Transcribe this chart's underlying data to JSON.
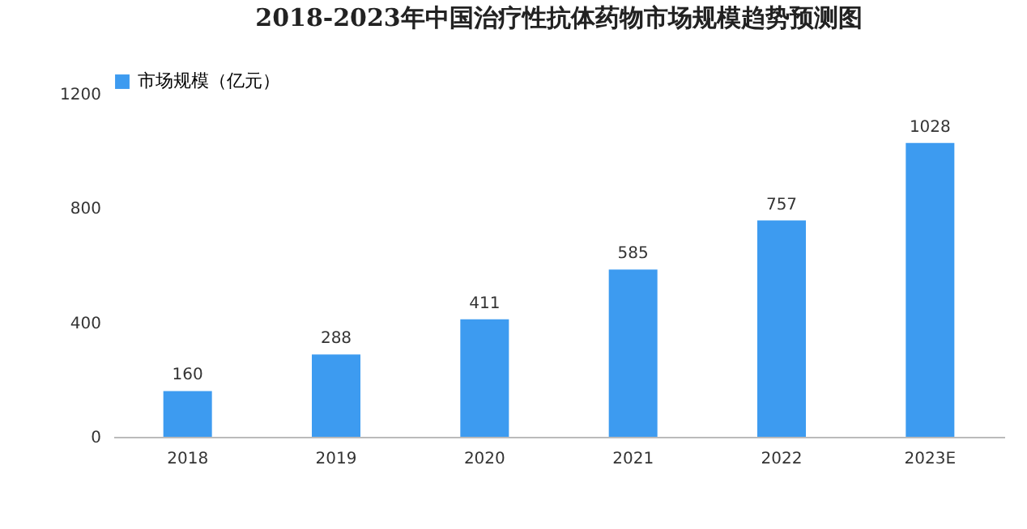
{
  "chart_data": {
    "type": "bar",
    "title": "2018-2023年中国治疗性抗体药物市场规模趋势预测图",
    "categories": [
      "2018",
      "2019",
      "2020",
      "2021",
      "2022",
      "2023E"
    ],
    "series": [
      {
        "name": "市场规模（亿元）",
        "color": "#3d9bf0",
        "values": [
          160,
          288,
          411,
          585,
          757,
          1028
        ]
      }
    ],
    "ylim": [
      0,
      1200
    ],
    "yticks": [
      0,
      400,
      800,
      1200
    ],
    "grid": false,
    "legend": "top",
    "data_labels": true
  }
}
